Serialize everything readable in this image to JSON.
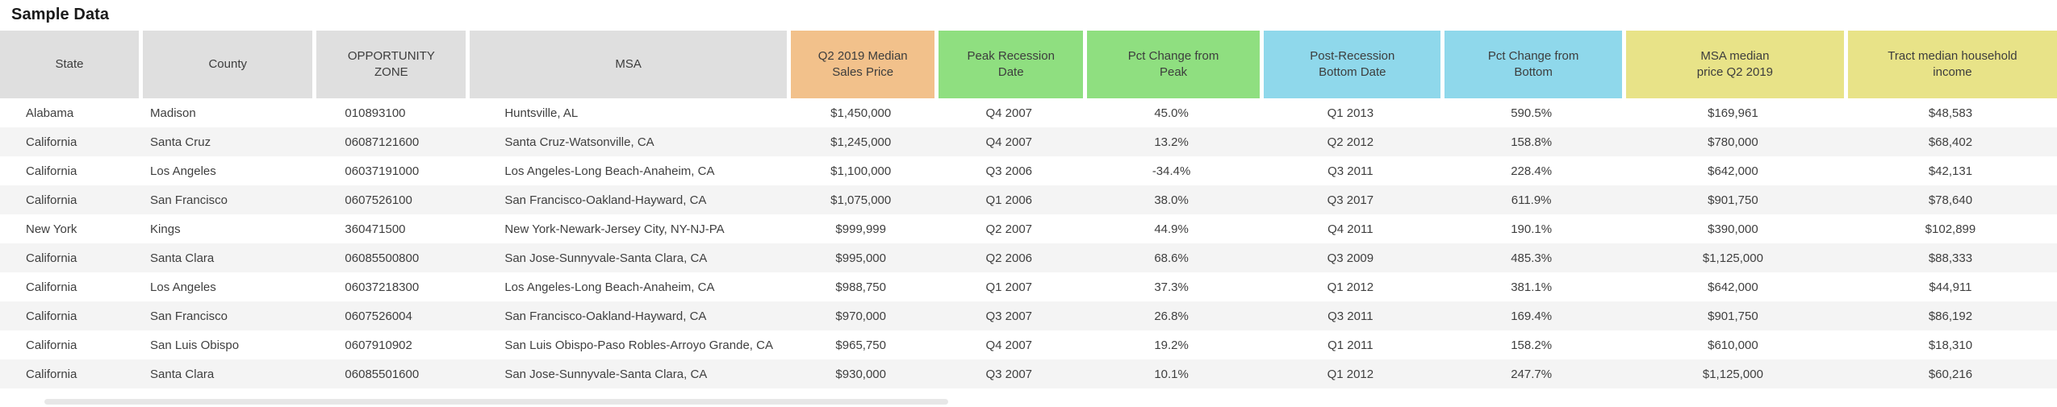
{
  "chart_data": {
    "type": "table",
    "title": "Sample Data",
    "columns": [
      {
        "label": "State",
        "bg": "#dfdfdf"
      },
      {
        "label": "County",
        "bg": "#dfdfdf"
      },
      {
        "label": "OPPORTUNITY ZONE",
        "bg": "#dfdfdf"
      },
      {
        "label": "MSA",
        "bg": "#dfdfdf"
      },
      {
        "label": "Q2 2019 Median Sales Price",
        "bg": "#f2c18b"
      },
      {
        "label": "Peak Recession Date",
        "bg": "#8fdf80"
      },
      {
        "label": "Pct Change from Peak",
        "bg": "#8fdf80"
      },
      {
        "label": "Post-Recession Bottom Date",
        "bg": "#8fd8eb"
      },
      {
        "label": "Pct Change from Bottom",
        "bg": "#8fd8eb"
      },
      {
        "label": "MSA median price Q2 2019",
        "bg": "#e8e388"
      },
      {
        "label": "Tract median household income",
        "bg": "#e8e388"
      }
    ],
    "rows": [
      [
        "Alabama",
        "Madison",
        "010893100",
        "Huntsville, AL",
        "$1,450,000",
        "Q4 2007",
        "45.0%",
        "Q1 2013",
        "590.5%",
        "$169,961",
        "$48,583"
      ],
      [
        "California",
        "Santa Cruz",
        "06087121600",
        "Santa Cruz-Watsonville, CA",
        "$1,245,000",
        "Q4 2007",
        "13.2%",
        "Q2 2012",
        "158.8%",
        "$780,000",
        "$68,402"
      ],
      [
        "California",
        "Los Angeles",
        "06037191000",
        "Los Angeles-Long Beach-Anaheim, CA",
        "$1,100,000",
        "Q3 2006",
        "-34.4%",
        "Q3 2011",
        "228.4%",
        "$642,000",
        "$42,131"
      ],
      [
        "California",
        "San Francisco",
        "0607526100",
        "San Francisco-Oakland-Hayward, CA",
        "$1,075,000",
        "Q1 2006",
        "38.0%",
        "Q3 2017",
        "611.9%",
        "$901,750",
        "$78,640"
      ],
      [
        "New York",
        "Kings",
        "360471500",
        "New York-Newark-Jersey City, NY-NJ-PA",
        "$999,999",
        "Q2 2007",
        "44.9%",
        "Q4 2011",
        "190.1%",
        "$390,000",
        "$102,899"
      ],
      [
        "California",
        "Santa Clara",
        "06085500800",
        "San Jose-Sunnyvale-Santa Clara, CA",
        "$995,000",
        "Q2 2006",
        "68.6%",
        "Q3 2009",
        "485.3%",
        "$1,125,000",
        "$88,333"
      ],
      [
        "California",
        "Los Angeles",
        "06037218300",
        "Los Angeles-Long Beach-Anaheim, CA",
        "$988,750",
        "Q1 2007",
        "37.3%",
        "Q1 2012",
        "381.1%",
        "$642,000",
        "$44,911"
      ],
      [
        "California",
        "San Francisco",
        "0607526004",
        "San Francisco-Oakland-Hayward, CA",
        "$970,000",
        "Q3 2007",
        "26.8%",
        "Q3 2011",
        "169.4%",
        "$901,750",
        "$86,192"
      ],
      [
        "California",
        "San Luis Obispo",
        "0607910902",
        "San Luis Obispo-Paso Robles-Arroyo Grande, CA",
        "$965,750",
        "Q4 2007",
        "19.2%",
        "Q1 2011",
        "158.2%",
        "$610,000",
        "$18,310"
      ],
      [
        "California",
        "Santa Clara",
        "06085501600",
        "San Jose-Sunnyvale-Santa Clara, CA",
        "$930,000",
        "Q3 2007",
        "10.1%",
        "Q1 2012",
        "247.7%",
        "$1,125,000",
        "$60,216"
      ]
    ]
  }
}
